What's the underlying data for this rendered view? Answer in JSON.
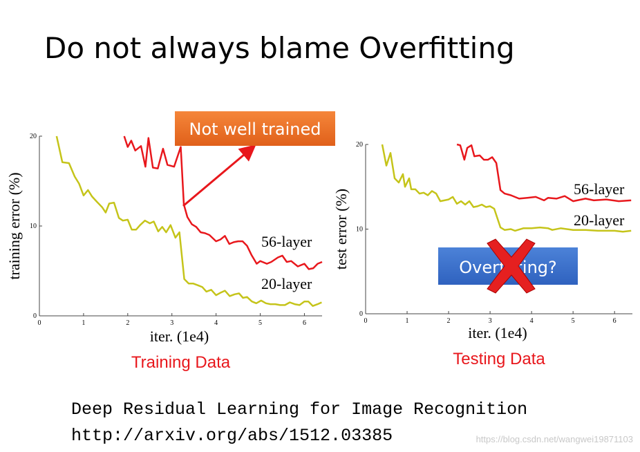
{
  "title": "Do not always blame Overfitting",
  "chart_data": [
    {
      "type": "line",
      "ylabel": "training error (%)",
      "xlabel": "iter. (1e4)",
      "caption": "Training Data",
      "annotation": "Not well trained",
      "xlim": [
        0,
        6.4
      ],
      "ylim": [
        0,
        20
      ],
      "xticks": [
        0,
        1,
        2,
        3,
        4,
        5,
        6
      ],
      "yticks": [
        0,
        10,
        20
      ],
      "series": [
        {
          "name": "56-layer",
          "color": "#e8171c",
          "x": [
            1.92,
            2.0,
            2.08,
            2.17,
            2.3,
            2.4,
            2.47,
            2.57,
            2.68,
            2.8,
            2.9,
            3.05,
            3.2,
            3.27,
            3.35,
            3.45,
            3.55,
            3.65,
            3.75,
            3.85,
            4.0,
            4.1,
            4.2,
            4.3,
            4.4,
            4.5,
            4.6,
            4.7,
            4.8,
            4.92,
            5.0,
            5.15,
            5.25,
            5.4,
            5.5,
            5.6,
            5.7,
            5.85,
            6.0,
            6.1,
            6.2,
            6.3,
            6.4
          ],
          "values": [
            20,
            18.8,
            19.5,
            18.4,
            18.9,
            16.6,
            19.8,
            16.5,
            16.4,
            18.6,
            16.8,
            16.6,
            18.8,
            12.4,
            11.0,
            10.2,
            9.9,
            9.3,
            9.2,
            9.0,
            8.3,
            8.5,
            8.9,
            8.0,
            8.2,
            8.3,
            8.3,
            7.8,
            6.8,
            5.8,
            6.1,
            5.8,
            6.0,
            6.5,
            6.7,
            6.0,
            6.1,
            5.5,
            5.8,
            5.2,
            5.3,
            5.8,
            6.0
          ]
        },
        {
          "name": "20-layer",
          "color": "#c5c41a",
          "x": [
            0.39,
            0.52,
            0.67,
            0.8,
            0.9,
            1.0,
            1.1,
            1.19,
            1.3,
            1.42,
            1.5,
            1.58,
            1.69,
            1.8,
            1.89,
            2.0,
            2.09,
            2.19,
            2.28,
            2.39,
            2.5,
            2.59,
            2.69,
            2.78,
            2.87,
            2.97,
            3.08,
            3.17,
            3.28,
            3.38,
            3.48,
            3.59,
            3.69,
            3.78,
            3.89,
            4.0,
            4.11,
            4.2,
            4.31,
            4.42,
            4.52,
            4.61,
            4.7,
            4.81,
            4.91,
            5.02,
            5.13,
            5.23,
            5.34,
            5.45,
            5.56,
            5.67,
            5.78,
            5.89,
            6.0,
            6.09,
            6.19,
            6.3,
            6.39
          ],
          "values": [
            20,
            17.1,
            17.0,
            15.5,
            14.7,
            13.4,
            14.0,
            13.3,
            12.7,
            12.1,
            11.5,
            12.5,
            12.6,
            10.9,
            10.6,
            10.7,
            9.6,
            9.6,
            10.1,
            10.6,
            10.3,
            10.5,
            9.4,
            9.9,
            9.3,
            10.1,
            8.7,
            9.3,
            4.1,
            3.6,
            3.6,
            3.4,
            3.2,
            2.7,
            2.9,
            2.3,
            2.6,
            2.8,
            2.2,
            2.4,
            2.5,
            2.0,
            2.1,
            1.6,
            1.4,
            1.7,
            1.4,
            1.3,
            1.3,
            1.2,
            1.2,
            1.5,
            1.3,
            1.2,
            1.6,
            1.6,
            1.1,
            1.3,
            1.5
          ]
        }
      ]
    },
    {
      "type": "line",
      "ylabel": "test error (%)",
      "xlabel": "iter. (1e4)",
      "caption": "Testing Data",
      "annotation": "Overfitting?",
      "xlim": [
        0,
        6.43
      ],
      "ylim": [
        0,
        20
      ],
      "xticks": [
        0,
        1,
        2,
        3,
        4,
        5,
        6
      ],
      "yticks": [
        0,
        10,
        20
      ],
      "series": [
        {
          "name": "56-layer",
          "color": "#e8171c",
          "x": [
            2.2,
            2.28,
            2.38,
            2.45,
            2.55,
            2.62,
            2.75,
            2.85,
            2.95,
            3.05,
            3.15,
            3.25,
            3.35,
            3.5,
            3.7,
            3.9,
            4.1,
            4.3,
            4.4,
            4.6,
            4.8,
            5.0,
            5.3,
            5.5,
            5.8,
            6.1,
            6.4
          ],
          "values": [
            20,
            19.9,
            18.2,
            19.6,
            19.9,
            18.6,
            18.7,
            18.2,
            18.2,
            18.5,
            17.8,
            14.6,
            14.2,
            14.0,
            13.6,
            13.7,
            13.8,
            13.4,
            13.7,
            13.6,
            13.9,
            13.3,
            13.6,
            13.4,
            13.5,
            13.3,
            13.4
          ]
        },
        {
          "name": "20-layer",
          "color": "#c5c41a",
          "x": [
            0.4,
            0.5,
            0.6,
            0.7,
            0.8,
            0.9,
            0.95,
            1.05,
            1.1,
            1.2,
            1.3,
            1.4,
            1.5,
            1.6,
            1.7,
            1.8,
            1.9,
            2.0,
            2.1,
            2.2,
            2.3,
            2.4,
            2.5,
            2.6,
            2.7,
            2.8,
            2.9,
            3.0,
            3.1,
            3.25,
            3.35,
            3.5,
            3.6,
            3.8,
            4.0,
            4.2,
            4.4,
            4.5,
            4.7,
            5.0,
            5.3,
            5.6,
            6.0,
            6.2,
            6.4
          ],
          "values": [
            20,
            17.5,
            19,
            16,
            15.5,
            16.5,
            15,
            16,
            14.7,
            14.7,
            14.2,
            14.3,
            14,
            14.5,
            14.2,
            13.3,
            13.4,
            13.5,
            13.8,
            13,
            13.3,
            12.9,
            13.3,
            12.6,
            12.7,
            12.9,
            12.6,
            12.7,
            12.4,
            10.2,
            9.9,
            10.0,
            9.8,
            10.1,
            10.1,
            10.2,
            10.1,
            9.9,
            10.1,
            9.9,
            9.9,
            9.8,
            9.8,
            9.7,
            9.8
          ]
        }
      ]
    }
  ],
  "citation": [
    "Deep Residual Learning for Image Recognition",
    "http://arxiv.org/abs/1512.03385"
  ],
  "watermark": "https://blog.csdn.net/wangwei19871103"
}
